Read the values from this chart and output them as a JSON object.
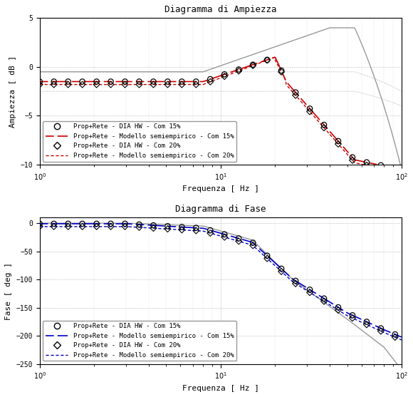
{
  "title_amp": "Diagramma di Ampiezza",
  "title_phase": "Diagramma di Fase",
  "xlabel": "Frequenza [ Hz ]",
  "ylabel_amp": "Ampiezza [ dB ]",
  "ylabel_phase": "Fase [ deg ]",
  "xlim": [
    1,
    100
  ],
  "ylim_amp": [
    -10,
    5
  ],
  "ylim_phase": [
    -250,
    10
  ],
  "yticks_amp": [
    -10,
    -5,
    0,
    5
  ],
  "yticks_phase": [
    -250,
    -200,
    -150,
    -100,
    -50,
    0
  ],
  "legend_amp": [
    "Prop+Rete - DIA HW - Com 15%",
    "Prop+Rete - Modello semiempirico - Com 15%",
    "Prop+Rete - DIA HW - Com 20%",
    "Prop+Rete - Modello semiempirico - Com 20%"
  ],
  "legend_phase": [
    "Prop+Rete - DIA HW - Com 15%",
    "Prop+Rete - Modello semiempirico - Com 15%",
    "Prop+Rete - DIA HW - Com 20%",
    "Prop+Rete - Modello semiempirico - Com 20%"
  ],
  "color_red": "#cc0000",
  "color_blue": "#0000cc",
  "color_gray_solid": "#999999",
  "color_gray_dot": "#aaaaaa",
  "background": "#ffffff"
}
